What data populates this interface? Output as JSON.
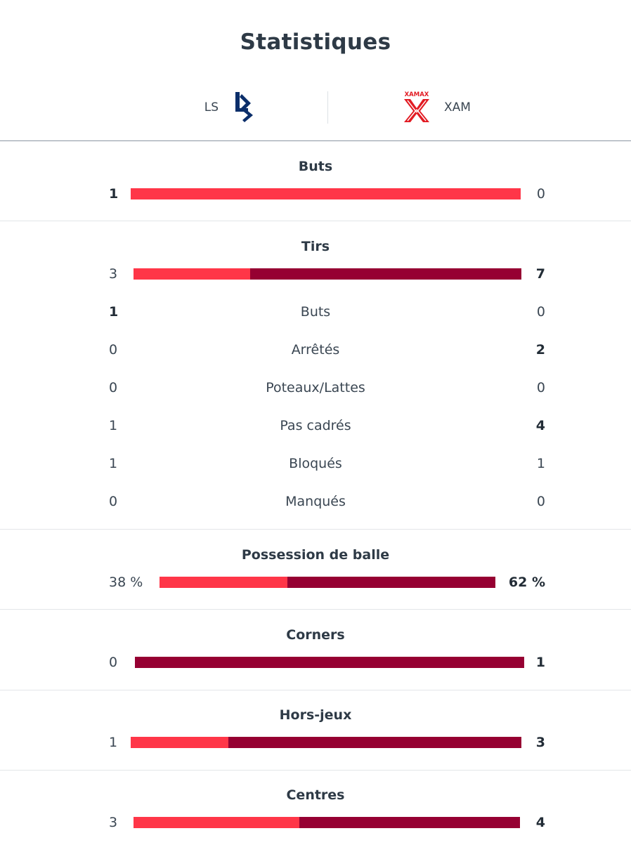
{
  "page": {
    "title": "Statistiques"
  },
  "teams": {
    "home": {
      "abbr": "LS",
      "logo_icon": "lausanne-sport-logo-icon",
      "color": "#0b2e6a"
    },
    "away": {
      "abbr": "XAM",
      "logo_icon": "xamax-logo-icon",
      "logo_text": "XAMAX",
      "color": "#e21b23"
    }
  },
  "colors": {
    "home_bar": "#ff3648",
    "away_bar": "#960032"
  },
  "stats": {
    "buts": {
      "label": "Buts",
      "home": "1",
      "away": "0",
      "home_share": 1.0
    },
    "tirs": {
      "label": "Tirs",
      "home": "3",
      "away": "7",
      "home_share": 0.3,
      "details": [
        {
          "label": "Buts",
          "home": "1",
          "away": "0"
        },
        {
          "label": "Arrêtés",
          "home": "0",
          "away": "2"
        },
        {
          "label": "Poteaux/Lattes",
          "home": "0",
          "away": "0"
        },
        {
          "label": "Pas cadrés",
          "home": "1",
          "away": "4"
        },
        {
          "label": "Bloqués",
          "home": "1",
          "away": "1"
        },
        {
          "label": "Manqués",
          "home": "0",
          "away": "0"
        }
      ]
    },
    "possession": {
      "label": "Possession de balle",
      "home": "38 %",
      "away": "62 %",
      "home_share": 0.38
    },
    "corners": {
      "label": "Corners",
      "home": "0",
      "away": "1",
      "home_share": 0.0
    },
    "hors_jeux": {
      "label": "Hors-jeux",
      "home": "1",
      "away": "3",
      "home_share": 0.25
    },
    "centres": {
      "label": "Centres",
      "home": "3",
      "away": "4",
      "home_share": 0.4286
    }
  }
}
